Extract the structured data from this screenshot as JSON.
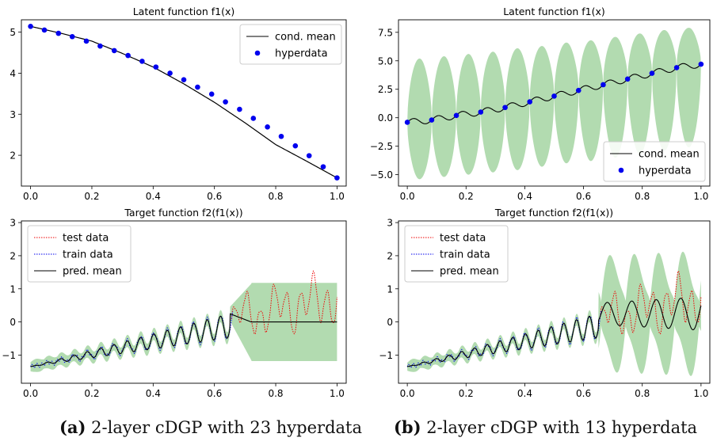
{
  "chart_data": [
    {
      "type": "line",
      "title": "Latent function f1(x)",
      "xlim": [
        -0.03,
        1.03
      ],
      "ylim": [
        1.25,
        5.3
      ],
      "xticks": [
        0.0,
        0.2,
        0.4,
        0.6,
        0.8,
        1.0
      ],
      "xtick_labels": [
        "0.0",
        "0.2",
        "0.4",
        "0.6",
        "0.8",
        "1.0"
      ],
      "yticks": [
        2,
        3,
        4,
        5
      ],
      "ytick_labels": [
        "2",
        "3",
        "4",
        "5"
      ],
      "legend": {
        "placement": "top-right",
        "entries": [
          "cond. mean",
          "hyperdata"
        ]
      },
      "series": [
        {
          "name": "cond. mean",
          "kind": "line",
          "color": "#000000",
          "x": [
            0.0,
            0.1,
            0.2,
            0.3,
            0.4,
            0.5,
            0.6,
            0.7,
            0.8,
            0.9,
            1.0
          ],
          "y": [
            5.14,
            4.97,
            4.78,
            4.48,
            4.15,
            3.74,
            3.29,
            2.79,
            2.26,
            1.86,
            1.45
          ]
        },
        {
          "name": "hyperdata",
          "kind": "scatter",
          "color": "#0000ee",
          "x": [
            0.0,
            0.045,
            0.091,
            0.136,
            0.182,
            0.227,
            0.273,
            0.318,
            0.364,
            0.409,
            0.455,
            0.5,
            0.545,
            0.591,
            0.636,
            0.682,
            0.727,
            0.773,
            0.818,
            0.864,
            0.909,
            0.955,
            1.0
          ],
          "y": [
            5.14,
            5.05,
            4.97,
            4.89,
            4.78,
            4.66,
            4.55,
            4.43,
            4.29,
            4.15,
            4.0,
            3.84,
            3.66,
            3.49,
            3.3,
            3.12,
            2.9,
            2.69,
            2.46,
            2.23,
            1.99,
            1.72,
            1.45
          ]
        }
      ]
    },
    {
      "type": "line",
      "title": "Latent function f1(x)",
      "xlim": [
        -0.03,
        1.03
      ],
      "ylim": [
        -6.0,
        8.6
      ],
      "xticks": [
        0.0,
        0.2,
        0.4,
        0.6,
        0.8,
        1.0
      ],
      "xtick_labels": [
        "0.0",
        "0.2",
        "0.4",
        "0.6",
        "0.8",
        "1.0"
      ],
      "yticks": [
        -5.0,
        -2.5,
        0.0,
        2.5,
        5.0,
        7.5
      ],
      "ytick_labels": [
        "−5.0",
        "−2.5",
        "0.0",
        "2.5",
        "5.0",
        "7.5"
      ],
      "legend": {
        "placement": "bottom-right",
        "entries": [
          "cond. mean",
          "hyperdata"
        ]
      },
      "band_color": "#b2dbb0",
      "series": [
        {
          "name": "cond. mean",
          "kind": "line",
          "color": "#000000",
          "x": [
            0.0,
            0.083,
            0.167,
            0.25,
            0.333,
            0.417,
            0.5,
            0.583,
            0.667,
            0.75,
            0.833,
            0.917,
            1.0
          ],
          "y": [
            -0.4,
            -0.2,
            0.2,
            0.5,
            0.9,
            1.4,
            1.9,
            2.4,
            2.9,
            3.4,
            3.9,
            4.4,
            4.7
          ]
        },
        {
          "name": "hyperdata",
          "kind": "scatter",
          "color": "#0000ee",
          "x": [
            0.0,
            0.083,
            0.167,
            0.25,
            0.333,
            0.417,
            0.5,
            0.583,
            0.667,
            0.75,
            0.833,
            0.917,
            1.0
          ],
          "y": [
            -0.4,
            -0.2,
            0.2,
            0.5,
            0.9,
            1.4,
            1.9,
            2.4,
            2.9,
            3.4,
            3.9,
            4.4,
            4.7
          ]
        },
        {
          "kind": "band",
          "upper_peak_at": [
            0.042,
            0.125,
            0.208,
            0.292,
            0.375,
            0.458,
            0.542,
            0.625,
            0.708,
            0.792,
            0.875,
            0.958
          ],
          "upper_peak": [
            5.2,
            5.4,
            5.6,
            5.8,
            6.1,
            6.3,
            6.6,
            6.8,
            7.1,
            7.4,
            7.7,
            7.9
          ],
          "lower_peak": [
            -5.4,
            -5.2,
            -5.0,
            -4.8,
            -4.6,
            -4.3,
            -4.0,
            -3.8,
            -3.5,
            -3.2,
            -2.9,
            -2.6
          ]
        }
      ]
    },
    {
      "type": "line",
      "title": "Target function f2(f1(x))",
      "xlim": [
        -0.03,
        1.03
      ],
      "ylim": [
        -1.85,
        3.05
      ],
      "xticks": [
        0.0,
        0.2,
        0.4,
        0.6,
        0.8,
        1.0
      ],
      "xtick_labels": [
        "0.0",
        "0.2",
        "0.4",
        "0.6",
        "0.8",
        "1.0"
      ],
      "yticks": [
        -1,
        0,
        1,
        2,
        3
      ],
      "ytick_labels": [
        "−1",
        "0",
        "1",
        "2",
        "3"
      ],
      "legend": {
        "placement": "top-left",
        "entries": [
          "test data",
          "train data",
          "pred. mean"
        ]
      },
      "band_color": "#b2dbb0",
      "series": [
        {
          "name": "test data",
          "kind": "line",
          "style": "dotted",
          "color": "#ee0000",
          "x_range": [
            0.65,
            1.0
          ]
        },
        {
          "name": "train data",
          "kind": "line",
          "style": "dotted",
          "color": "#0000ee",
          "x_range": [
            0.0,
            0.65
          ]
        },
        {
          "name": "pred. mean",
          "kind": "line",
          "color": "#000000",
          "x_range": [
            0.0,
            1.0
          ]
        }
      ]
    },
    {
      "type": "line",
      "title": "Target function f2(f1(x))",
      "xlim": [
        -0.03,
        1.03
      ],
      "ylim": [
        -1.85,
        3.05
      ],
      "xticks": [
        0.0,
        0.2,
        0.4,
        0.6,
        0.8,
        1.0
      ],
      "xtick_labels": [
        "0.0",
        "0.2",
        "0.4",
        "0.6",
        "0.8",
        "1.0"
      ],
      "yticks": [
        -1,
        0,
        1,
        2,
        3
      ],
      "ytick_labels": [
        "−1",
        "0",
        "1",
        "2",
        "3"
      ],
      "legend": {
        "placement": "top-left",
        "entries": [
          "test data",
          "train data",
          "pred. mean"
        ]
      },
      "band_color": "#b2dbb0",
      "series": [
        {
          "name": "test data",
          "kind": "line",
          "style": "dotted",
          "color": "#ee0000",
          "x_range": [
            0.65,
            1.0
          ]
        },
        {
          "name": "train data",
          "kind": "line",
          "style": "dotted",
          "color": "#0000ee",
          "x_range": [
            0.0,
            0.65
          ]
        },
        {
          "name": "pred. mean",
          "kind": "line",
          "color": "#000000",
          "x_range": [
            0.0,
            1.0
          ]
        }
      ]
    }
  ],
  "captions": [
    {
      "tag": "(a)",
      "text": "2-layer cDGP with 23 hyperdata"
    },
    {
      "tag": "(b)",
      "text": "2-layer cDGP with 13 hyperdata"
    }
  ]
}
